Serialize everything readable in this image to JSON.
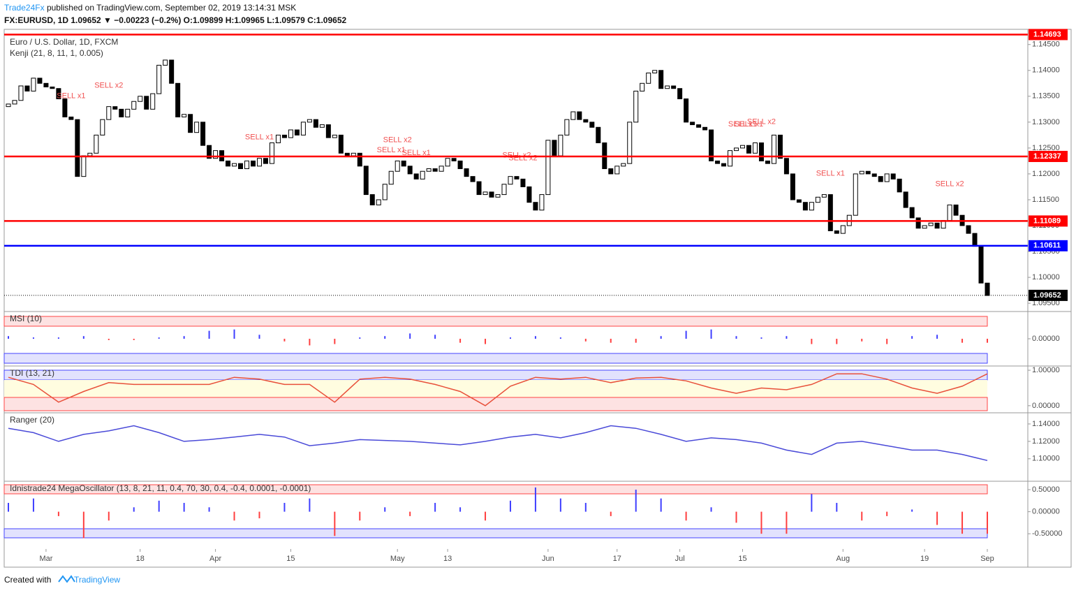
{
  "header": {
    "publisher": "Trade24Fx",
    "published": "published on TradingView.com, September 02, 2019 13:14:31 MSK",
    "symbol": "FX:EURUSD, 1D 1.09652 ▼ −0.00223 (−0.2%) O:1.09899 H:1.09965 L:1.09579 C:1.09652"
  },
  "footer": {
    "created": "Created with",
    "brand": "TradingView"
  },
  "chart_data": [
    {
      "type": "candlestick",
      "title": "Euro / U.S. Dollar, 1D, FXCM",
      "subtitle": "Kenji (21, 8, 11, 1, 0.005)",
      "open": [
        1.133,
        1.1335,
        1.1342,
        1.137,
        1.136,
        1.1385,
        1.1375,
        1.1368,
        1.1365,
        1.1345,
        1.131,
        1.1305,
        1.1195,
        1.1235,
        1.124,
        1.1275,
        1.1305,
        1.133,
        1.1325,
        1.131,
        1.1325,
        1.134,
        1.135,
        1.1325,
        1.1355,
        1.141,
        1.142,
        1.1375,
        1.131,
        1.1315,
        1.128,
        1.13,
        1.1255,
        1.123,
        1.1245,
        1.1225,
        1.1215,
        1.122,
        1.121,
        1.1225,
        1.1215,
        1.123,
        1.122,
        1.126,
        1.1275,
        1.127,
        1.1285,
        1.1275,
        1.13,
        1.1305,
        1.129,
        1.1295,
        1.127,
        1.1275,
        1.124,
        1.1235,
        1.124,
        1.1215,
        1.116,
        1.114,
        1.115,
        1.118,
        1.1205,
        1.1225,
        1.1215,
        1.12,
        1.119,
        1.1205,
        1.121,
        1.1205,
        1.1215,
        1.123,
        1.1225,
        1.121,
        1.1195,
        1.1185,
        1.116,
        1.1165,
        1.1155,
        1.116,
        1.118,
        1.1195,
        1.119,
        1.1175,
        1.1145,
        1.113,
        1.116,
        1.1265,
        1.1235,
        1.1275,
        1.1305,
        1.132,
        1.1305,
        1.13,
        1.129,
        1.126,
        1.121,
        1.12,
        1.1215,
        1.122,
        1.13,
        1.136,
        1.1375,
        1.1395,
        1.14,
        1.1365,
        1.137,
        1.1365,
        1.1345,
        1.13,
        1.1295,
        1.129,
        1.1285,
        1.1225,
        1.122,
        1.1215,
        1.1245,
        1.125,
        1.1255,
        1.124,
        1.126,
        1.1225,
        1.122,
        1.1275,
        1.123,
        1.12,
        1.115,
        1.1145,
        1.113,
        1.1145,
        1.1155,
        1.116,
        1.109,
        1.1085,
        1.11,
        1.112,
        1.12,
        1.1205,
        1.12,
        1.1195,
        1.1185,
        1.12,
        1.119,
        1.1165,
        1.1135,
        1.1115,
        1.1095,
        1.11,
        1.1105,
        1.1095,
        1.111,
        1.114,
        1.112,
        1.11,
        1.1085,
        1.106,
        1.0989
      ],
      "close": [
        1.1335,
        1.1342,
        1.137,
        1.136,
        1.1385,
        1.1375,
        1.1368,
        1.1365,
        1.1345,
        1.131,
        1.1305,
        1.1195,
        1.1235,
        1.124,
        1.1275,
        1.1305,
        1.133,
        1.1325,
        1.131,
        1.1325,
        1.134,
        1.135,
        1.1325,
        1.1355,
        1.141,
        1.142,
        1.1375,
        1.131,
        1.1315,
        1.128,
        1.13,
        1.1255,
        1.123,
        1.1245,
        1.1225,
        1.1215,
        1.122,
        1.121,
        1.1225,
        1.1215,
        1.123,
        1.122,
        1.126,
        1.1275,
        1.127,
        1.1285,
        1.1275,
        1.13,
        1.1305,
        1.129,
        1.1295,
        1.127,
        1.1275,
        1.124,
        1.1235,
        1.124,
        1.1215,
        1.116,
        1.114,
        1.115,
        1.118,
        1.1205,
        1.1225,
        1.1215,
        1.12,
        1.119,
        1.1205,
        1.121,
        1.1205,
        1.1215,
        1.123,
        1.1225,
        1.121,
        1.1195,
        1.1185,
        1.116,
        1.1165,
        1.1155,
        1.116,
        1.118,
        1.1195,
        1.119,
        1.1175,
        1.1145,
        1.113,
        1.116,
        1.1265,
        1.1235,
        1.1275,
        1.1305,
        1.132,
        1.1305,
        1.13,
        1.129,
        1.126,
        1.121,
        1.12,
        1.1215,
        1.122,
        1.13,
        1.136,
        1.1375,
        1.1395,
        1.14,
        1.1365,
        1.137,
        1.1365,
        1.1345,
        1.13,
        1.1295,
        1.129,
        1.1285,
        1.1225,
        1.122,
        1.1215,
        1.1245,
        1.125,
        1.1255,
        1.124,
        1.126,
        1.1225,
        1.122,
        1.1275,
        1.123,
        1.12,
        1.115,
        1.1145,
        1.113,
        1.1145,
        1.1155,
        1.116,
        1.109,
        1.1085,
        1.11,
        1.112,
        1.12,
        1.1205,
        1.12,
        1.1195,
        1.1185,
        1.12,
        1.119,
        1.1165,
        1.1135,
        1.1115,
        1.1095,
        1.11,
        1.1105,
        1.1095,
        1.111,
        1.114,
        1.112,
        1.11,
        1.1085,
        1.106,
        1.0989,
        1.0965
      ],
      "ylim": [
        1.0934,
        1.1478
      ],
      "yticks": [
        {
          "value": 1.095,
          "label": "1.09500"
        },
        {
          "value": 1.1,
          "label": "1.10000"
        },
        {
          "value": 1.105,
          "label": "1.10500"
        },
        {
          "value": 1.11,
          "label": "1.11000"
        },
        {
          "value": 1.115,
          "label": "1.11500"
        },
        {
          "value": 1.12,
          "label": "1.12000"
        },
        {
          "value": 1.125,
          "label": "1.12500"
        },
        {
          "value": 1.13,
          "label": "1.13000"
        },
        {
          "value": 1.135,
          "label": "1.13500"
        },
        {
          "value": 1.14,
          "label": "1.14000"
        },
        {
          "value": 1.145,
          "label": "1.14500"
        }
      ],
      "xticks": [
        {
          "value": 6,
          "label": "Mar"
        },
        {
          "value": 21,
          "label": "18"
        },
        {
          "value": 33,
          "label": "Apr"
        },
        {
          "value": 45,
          "label": "15"
        },
        {
          "value": 62,
          "label": "May"
        },
        {
          "value": 70,
          "label": "13"
        },
        {
          "value": 86,
          "label": "Jun"
        },
        {
          "value": 97,
          "label": "17"
        },
        {
          "value": 107,
          "label": "Jul"
        },
        {
          "value": 117,
          "label": "15"
        },
        {
          "value": 133,
          "label": "Aug"
        },
        {
          "value": 146,
          "label": "19"
        },
        {
          "value": 156,
          "label": "Sep"
        }
      ],
      "levels": [
        {
          "value": 1.14693,
          "color": "#ff0000"
        },
        {
          "value": 1.12337,
          "color": "#ff0000"
        },
        {
          "value": 1.11089,
          "color": "#ff0000"
        },
        {
          "value": 1.10611,
          "color": "#0000ff"
        }
      ],
      "last": {
        "value": 1.09652,
        "color": "#000000"
      },
      "annotations": [
        {
          "text": "SELL x1",
          "index": 10
        },
        {
          "text": "SELL x2",
          "index": 16
        },
        {
          "text": "SELL x1",
          "index": 40
        },
        {
          "text": "SELL x1",
          "index": 61
        },
        {
          "text": "SELL x2",
          "index": 62
        },
        {
          "text": "SELL x1",
          "index": 65
        },
        {
          "text": "SELL x2",
          "index": 81
        },
        {
          "text": "SELL x2",
          "index": 82
        },
        {
          "text": "SELL x1",
          "index": 117
        },
        {
          "text": "SELL x1",
          "index": 118
        },
        {
          "text": "SELL x2",
          "index": 120
        },
        {
          "text": "SELL x1",
          "index": 131
        },
        {
          "text": "SELL x2",
          "index": 150
        }
      ]
    },
    {
      "type": "bar",
      "title": "MSI (10)",
      "color": "#3f3fff",
      "negative_color": "#ff3f3f",
      "ylim": [
        -1,
        1
      ],
      "yticks": [
        {
          "value": 0,
          "label": "0.00000"
        }
      ],
      "values": [
        0.1,
        0.05,
        0.05,
        0.1,
        -0.05,
        -0.05,
        0.05,
        0.1,
        0.3,
        0.35,
        0.15,
        -0.1,
        -0.25,
        -0.2,
        0.05,
        0.1,
        0.2,
        0.15,
        -0.15,
        -0.2,
        0.05,
        0.1,
        0.05,
        -0.1,
        -0.15,
        -0.15,
        0.1,
        0.3,
        0.35,
        0.1,
        0.05,
        0.1,
        -0.2,
        -0.2,
        -0.1,
        -0.2,
        0.1,
        0.15,
        -0.15,
        -0.15
      ]
    },
    {
      "type": "line",
      "title": "TDI (13, 21)",
      "color": "#e8503a",
      "ylim": [
        -0.2,
        1.1
      ],
      "yticks": [
        {
          "value": 1,
          "label": "1.00000"
        },
        {
          "value": 0,
          "label": "0.00000"
        }
      ],
      "values": [
        0.8,
        0.6,
        0.1,
        0.4,
        0.65,
        0.6,
        0.6,
        0.6,
        0.6,
        0.8,
        0.75,
        0.6,
        0.6,
        0.1,
        0.75,
        0.8,
        0.75,
        0.6,
        0.4,
        0.0,
        0.55,
        0.8,
        0.75,
        0.8,
        0.65,
        0.78,
        0.8,
        0.7,
        0.5,
        0.35,
        0.5,
        0.45,
        0.6,
        0.9,
        0.9,
        0.75,
        0.5,
        0.35,
        0.55,
        0.9
      ]
    },
    {
      "type": "line",
      "title": "Ranger (20)",
      "color": "#4a4ad8",
      "ylim": [
        1.075,
        1.152
      ],
      "yticks": [
        {
          "value": 1.14,
          "label": "1.14000"
        },
        {
          "value": 1.12,
          "label": "1.12000"
        },
        {
          "value": 1.1,
          "label": "1.10000"
        }
      ],
      "values": [
        1.135,
        1.13,
        1.12,
        1.128,
        1.132,
        1.138,
        1.13,
        1.12,
        1.122,
        1.125,
        1.128,
        1.125,
        1.115,
        1.118,
        1.122,
        1.121,
        1.12,
        1.118,
        1.116,
        1.12,
        1.125,
        1.128,
        1.124,
        1.13,
        1.138,
        1.135,
        1.128,
        1.12,
        1.124,
        1.122,
        1.118,
        1.11,
        1.105,
        1.118,
        1.12,
        1.115,
        1.11,
        1.11,
        1.105,
        1.098
      ]
    },
    {
      "type": "bar",
      "title": "Idnistrade24 MegaOscillator (13, 8, 21, 11, 0.4, 70, 30, 0.4, -0.4, 0.0001, -0.0001)",
      "color": "#3f3fff",
      "negative_color": "#ff3f3f",
      "ylim": [
        -0.83,
        0.675
      ],
      "yticks": [
        {
          "value": 0.5,
          "label": "0.50000"
        },
        {
          "value": 0,
          "label": "0.00000"
        },
        {
          "value": -0.5,
          "label": "-0.50000"
        }
      ],
      "values": [
        0.2,
        0.3,
        -0.1,
        -0.6,
        -0.2,
        0.1,
        0.25,
        0.2,
        0.1,
        -0.2,
        -0.15,
        0.2,
        0.3,
        -0.55,
        -0.2,
        0.1,
        -0.1,
        0.2,
        0.1,
        -0.2,
        0.25,
        0.55,
        0.3,
        0.2,
        -0.1,
        0.5,
        0.3,
        -0.2,
        0.1,
        -0.25,
        -0.5,
        -0.5,
        0.4,
        0.2,
        -0.2,
        -0.1,
        0.05,
        -0.3,
        -0.5,
        -0.5
      ]
    }
  ]
}
